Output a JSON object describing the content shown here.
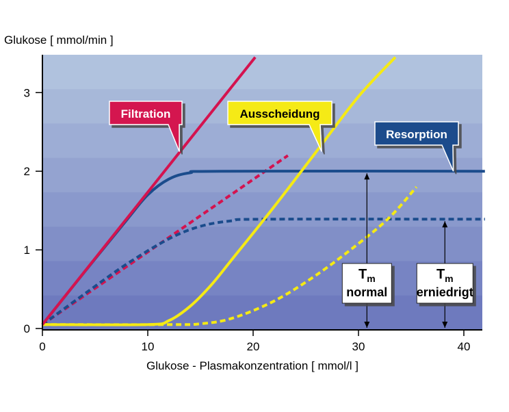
{
  "chart_data": {
    "type": "line",
    "ylabel": "Glukose [ mmol/min ]",
    "xlabel": "Glukose - Plasmakonzentration [ mmol/l ]",
    "xlim": [
      0,
      42
    ],
    "ylim": [
      0,
      3.45
    ],
    "x_ticks": [
      0,
      10,
      20,
      30,
      40
    ],
    "y_ticks": [
      0,
      1,
      2,
      3
    ],
    "grid": false,
    "background": "horizontal bands, gradient from light blue (top) to darker blue (bottom)",
    "series": [
      {
        "name": "Filtration",
        "style": "solid",
        "color": "#d4134f",
        "points": [
          [
            0,
            0.05
          ],
          [
            20.2,
            3.45
          ]
        ]
      },
      {
        "name": "Resorption",
        "style": "solid",
        "color": "#1b4c8c",
        "points": [
          [
            0,
            0.05
          ],
          [
            4,
            0.72
          ],
          [
            8,
            1.38
          ],
          [
            10,
            1.7
          ],
          [
            12,
            1.9
          ],
          [
            14,
            1.98
          ],
          [
            17,
            2.0
          ],
          [
            42,
            2.0
          ]
        ]
      },
      {
        "name": "Ausscheidung",
        "style": "solid",
        "color": "#f5ea14",
        "points": [
          [
            0,
            0.05
          ],
          [
            10,
            0.05
          ],
          [
            12,
            0.1
          ],
          [
            14,
            0.28
          ],
          [
            16,
            0.55
          ],
          [
            18,
            0.88
          ],
          [
            22,
            1.55
          ],
          [
            26,
            2.25
          ],
          [
            30,
            2.95
          ],
          [
            33.5,
            3.45
          ]
        ]
      },
      {
        "name": "",
        "style": "dashed",
        "color": "#d4134f",
        "points": [
          [
            0,
            0.05
          ],
          [
            23.3,
            2.2
          ]
        ]
      },
      {
        "name": "",
        "style": "dashed",
        "color": "#1b4c8c",
        "points": [
          [
            0,
            0.05
          ],
          [
            4,
            0.44
          ],
          [
            8,
            0.82
          ],
          [
            12,
            1.14
          ],
          [
            15,
            1.3
          ],
          [
            18,
            1.37
          ],
          [
            21,
            1.39
          ],
          [
            42,
            1.39
          ]
        ]
      },
      {
        "name": "",
        "style": "dashed",
        "color": "#f5ea14",
        "points": [
          [
            0,
            0.05
          ],
          [
            12,
            0.05
          ],
          [
            15,
            0.06
          ],
          [
            18,
            0.13
          ],
          [
            22,
            0.35
          ],
          [
            26,
            0.68
          ],
          [
            30,
            1.08
          ],
          [
            33,
            1.42
          ],
          [
            35.5,
            1.8
          ]
        ]
      }
    ],
    "annotations": [
      {
        "text": "Filtration",
        "box_color": "#d4134f",
        "text_color": "#ffffff",
        "points_to": [
          13,
          2.25
        ]
      },
      {
        "text": "Ausscheidung",
        "box_color": "#f5ea14",
        "text_color": "#000000",
        "points_to": [
          26.5,
          2.25
        ]
      },
      {
        "text": "Resorption",
        "box_color": "#1b4c8c",
        "text_color": "#ffffff",
        "points_to": [
          39,
          2.0
        ]
      }
    ],
    "tm_markers": [
      {
        "symbol": "T",
        "subscript": "m",
        "label": "normal",
        "x": 30.8,
        "y_from": 0,
        "y_to": 2.0
      },
      {
        "symbol": "T",
        "subscript": "m",
        "label": "erniedrigt",
        "x": 38.2,
        "y_from": 0,
        "y_to": 1.39
      }
    ]
  }
}
